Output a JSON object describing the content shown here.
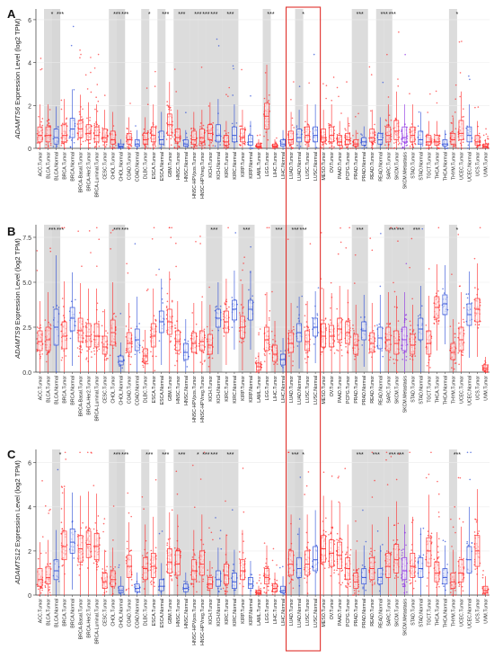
{
  "chart_data": [
    {
      "panel": "A",
      "type": "box",
      "ylabel": "ADAMTS6 Expression Level (log2 TPM)",
      "gene": "ADAMTS6",
      "ylim": [
        0,
        6.5
      ],
      "yticks": [
        0,
        2,
        4,
        6
      ],
      "categories": [
        "ACC.Tumor",
        "BLCA.Tumor",
        "BLCA.Normal",
        "BRCA.Tumor",
        "BRCA.Normal",
        "BRCA-Basal.Tumor",
        "BRCA-Her2.Tumor",
        "BRCA-Luminal.Tumor",
        "CESC.Tumor",
        "CHOL.Tumor",
        "CHOL.Normal",
        "COAD.Tumor",
        "COAD.Normal",
        "DLBC.Tumor",
        "ESCA.Tumor",
        "ESCA.Normal",
        "GBM.Tumor",
        "HNSC.Tumor",
        "HNSC.Normal",
        "HNSC-HPVpos.Tumor",
        "HNSC-HPVneg.Tumor",
        "KICH.Tumor",
        "KICH.Normal",
        "KIRC.Tumor",
        "KIRC.Normal",
        "KIRP.Tumor",
        "KIRP.Normal",
        "LAML.Tumor",
        "LGG.Tumor",
        "LIHC.Tumor",
        "LIHC.Normal",
        "LUAD.Tumor",
        "LUAD.Normal",
        "LUSC.Tumor",
        "LUSC.Normal",
        "MESO.Tumor",
        "OV.Tumor",
        "PAAD.Tumor",
        "PCPG.Tumor",
        "PRAD.Tumor",
        "PRAD.Normal",
        "READ.Tumor",
        "READ.Normal",
        "SARC.Tumor",
        "SKCM.Tumor",
        "SKCM.Metastasis",
        "STAD.Tumor",
        "STAD.Normal",
        "TGCT.Tumor",
        "THCA.Tumor",
        "THCA.Normal",
        "THYM.Tumor",
        "UCEC.Tumor",
        "UCEC.Normal",
        "UCS.Tumor",
        "UVM.Tumor"
      ],
      "medians": [
        0.6,
        0.6,
        0.5,
        0.6,
        0.9,
        0.9,
        0.7,
        0.6,
        0.5,
        0.4,
        0.1,
        0.4,
        0.2,
        0.4,
        0.6,
        0.4,
        1.1,
        0.5,
        0.2,
        0.4,
        0.5,
        0.7,
        0.6,
        0.3,
        0.6,
        0.5,
        0.3,
        0.1,
        1.5,
        0.1,
        0.2,
        0.4,
        0.5,
        0.6,
        0.6,
        0.5,
        0.6,
        0.3,
        0.4,
        0.2,
        0.3,
        0.5,
        0.4,
        0.6,
        0.8,
        0.5,
        0.6,
        0.4,
        0.3,
        0.3,
        0.2,
        0.4,
        0.7,
        0.6,
        0.3,
        0.1
      ],
      "q1": [
        0.3,
        0.3,
        0.2,
        0.3,
        0.5,
        0.5,
        0.4,
        0.3,
        0.3,
        0.2,
        0.05,
        0.2,
        0.1,
        0.2,
        0.3,
        0.2,
        0.6,
        0.3,
        0.1,
        0.2,
        0.3,
        0.4,
        0.3,
        0.15,
        0.3,
        0.3,
        0.15,
        0.05,
        0.9,
        0.05,
        0.1,
        0.2,
        0.3,
        0.3,
        0.3,
        0.3,
        0.3,
        0.15,
        0.2,
        0.1,
        0.15,
        0.3,
        0.2,
        0.3,
        0.4,
        0.3,
        0.3,
        0.2,
        0.15,
        0.15,
        0.1,
        0.2,
        0.4,
        0.3,
        0.15,
        0.05
      ],
      "q3": [
        1.0,
        1.0,
        0.9,
        1.1,
        1.4,
        1.3,
        1.1,
        1.0,
        0.9,
        0.8,
        0.2,
        0.7,
        0.4,
        0.7,
        1.0,
        0.8,
        1.6,
        0.9,
        0.4,
        0.8,
        0.9,
        1.1,
        1.1,
        0.6,
        1.0,
        0.9,
        0.6,
        0.2,
        2.1,
        0.2,
        0.4,
        0.8,
        0.9,
        1.0,
        1.0,
        0.9,
        1.0,
        0.6,
        0.7,
        0.4,
        0.5,
        0.9,
        0.7,
        1.0,
        1.3,
        1.0,
        1.0,
        0.8,
        0.6,
        0.6,
        0.4,
        0.7,
        1.3,
        1.0,
        0.6,
        0.2
      ],
      "significance": [
        "",
        "*",
        "***",
        "",
        "",
        "",
        "",
        "",
        "",
        "***",
        "***",
        "",
        "",
        "*",
        "",
        "***",
        "",
        "***",
        "",
        "***",
        "***",
        "***",
        "",
        "***",
        "",
        "",
        "",
        "",
        "***",
        "",
        "",
        "",
        "*",
        "",
        "",
        "",
        "",
        "",
        "",
        "***",
        "",
        "",
        "***",
        "***",
        "",
        "",
        "",
        "",
        "",
        "",
        "",
        "*",
        "",
        "",
        ""
      ]
    },
    {
      "panel": "B",
      "type": "box",
      "ylabel": "ADAMTS9 Expression Level (log2 TPM)",
      "gene": "ADAMTS9",
      "ylim": [
        0,
        8.2
      ],
      "yticks": [
        0.0,
        2.5,
        5.0,
        7.5
      ],
      "yticklabels": [
        "0.0",
        "2.5",
        "5.0",
        "7.5"
      ],
      "categories": [
        "ACC.Tumor",
        "BLCA.Tumor",
        "BLCA.Normal",
        "BRCA.Tumor",
        "BRCA.Normal",
        "BRCA-Basal.Tumor",
        "BRCA-Her2.Tumor",
        "BRCA-Luminal.Tumor",
        "CESC.Tumor",
        "CHOL.Tumor",
        "CHOL.Normal",
        "COAD.Tumor",
        "COAD.Normal",
        "DLBC.Tumor",
        "ESCA.Tumor",
        "ESCA.Normal",
        "GBM.Tumor",
        "HNSC.Tumor",
        "HNSC.Normal",
        "HNSC-HPVpos.Tumor",
        "HNSC-HPVneg.Tumor",
        "KICH.Tumor",
        "KICH.Normal",
        "KIRC.Tumor",
        "KIRC.Normal",
        "KIRP.Tumor",
        "KIRP.Normal",
        "LAML.Tumor",
        "LGG.Tumor",
        "LIHC.Tumor",
        "LIHC.Normal",
        "LUAD.Tumor",
        "LUAD.Normal",
        "LUSC.Tumor",
        "LUSC.Normal",
        "MESO.Tumor",
        "OV.Tumor",
        "PAAD.Tumor",
        "PCPG.Tumor",
        "PRAD.Tumor",
        "PRAD.Normal",
        "READ.Tumor",
        "READ.Normal",
        "SARC.Tumor",
        "SKCM.Tumor",
        "SKCM.Metastasis",
        "STAD.Tumor",
        "STAD.Normal",
        "TGCT.Tumor",
        "THCA.Tumor",
        "THCA.Normal",
        "THYM.Tumor",
        "UCEC.Tumor",
        "UCEC.Normal",
        "UCS.Tumor",
        "UVM.Tumor"
      ],
      "medians": [
        1.7,
        1.8,
        2.5,
        2.0,
        3.0,
        2.3,
        2.0,
        2.0,
        1.4,
        2.2,
        0.6,
        1.6,
        1.8,
        0.9,
        2.0,
        2.8,
        2.8,
        1.7,
        1.1,
        1.6,
        1.7,
        1.5,
        3.0,
        2.8,
        3.5,
        2.5,
        3.5,
        0.3,
        1.8,
        1.0,
        0.7,
        1.6,
        2.2,
        1.7,
        2.5,
        2.0,
        2.0,
        2.4,
        2.2,
        1.5,
        2.3,
        1.6,
        1.9,
        1.8,
        1.6,
        1.8,
        1.5,
        2.4,
        1.6,
        3.6,
        3.8,
        1.1,
        1.8,
        3.2,
        3.5,
        0.2
      ],
      "q1": [
        1.2,
        1.2,
        1.5,
        1.3,
        2.3,
        1.7,
        1.4,
        1.4,
        1.0,
        1.5,
        0.4,
        1.1,
        1.2,
        0.6,
        1.4,
        2.2,
        2.1,
        1.2,
        0.7,
        1.1,
        1.2,
        1.0,
        2.5,
        2.2,
        2.9,
        1.9,
        2.9,
        0.1,
        1.2,
        0.6,
        0.4,
        1.1,
        1.7,
        1.2,
        2.0,
        1.4,
        1.4,
        1.8,
        1.6,
        1.0,
        1.8,
        1.1,
        1.3,
        1.2,
        1.0,
        1.2,
        1.0,
        1.8,
        1.0,
        3.0,
        3.2,
        0.7,
        1.2,
        2.6,
        2.8,
        0.1
      ],
      "q3": [
        2.3,
        2.5,
        3.5,
        2.8,
        3.6,
        3.0,
        2.7,
        2.7,
        2.0,
        2.9,
        0.9,
        2.2,
        2.4,
        1.3,
        2.7,
        3.4,
        3.5,
        2.3,
        1.6,
        2.2,
        2.3,
        2.1,
        3.5,
        3.4,
        4.0,
        3.1,
        4.0,
        0.5,
        2.5,
        1.5,
        1.0,
        2.2,
        2.7,
        2.3,
        3.0,
        2.7,
        2.6,
        3.0,
        2.8,
        2.1,
        2.8,
        2.2,
        2.5,
        2.5,
        2.3,
        2.5,
        2.1,
        3.0,
        2.3,
        4.2,
        4.3,
        1.6,
        2.5,
        3.8,
        4.1,
        0.4
      ],
      "significance": [
        "",
        "***",
        "***",
        "",
        "",
        "",
        "",
        "",
        "",
        "***",
        "***",
        "",
        "",
        "",
        "",
        "",
        "",
        "",
        "",
        "",
        "",
        "***",
        "",
        "",
        "",
        "***",
        "",
        "",
        "",
        "***",
        "",
        "***",
        "***",
        "",
        "",
        "",
        "",
        "",
        "",
        "***",
        "",
        "",
        "",
        "***",
        "***",
        "",
        "***",
        "",
        "",
        "",
        "",
        "*",
        "",
        "",
        ""
      ]
    },
    {
      "panel": "C",
      "type": "box",
      "ylabel": "ADAMTS12 Expression Level (log2 TPM)",
      "gene": "ADAMTS12",
      "ylim": [
        0,
        6.6
      ],
      "yticks": [
        0,
        2,
        4,
        6
      ],
      "categories": [
        "ACC.Tumor",
        "BLCA.Tumor",
        "BLCA.Normal",
        "BRCA.Tumor",
        "BRCA.Normal",
        "BRCA-Basal.Tumor",
        "BRCA-Her2.Tumor",
        "BRCA-Luminal.Tumor",
        "CESC.Tumor",
        "CHOL.Tumor",
        "CHOL.Normal",
        "COAD.Tumor",
        "COAD.Normal",
        "DLBC.Tumor",
        "ESCA.Tumor",
        "ESCA.Normal",
        "GBM.Tumor",
        "HNSC.Tumor",
        "HNSC.Normal",
        "HNSC-HPVpos.Tumor",
        "HNSC-HPVneg.Tumor",
        "KICH.Tumor",
        "KICH.Normal",
        "KIRC.Tumor",
        "KIRC.Normal",
        "KIRP.Tumor",
        "KIRP.Normal",
        "LAML.Tumor",
        "LGG.Tumor",
        "LIHC.Tumor",
        "LIHC.Normal",
        "LUAD.Tumor",
        "LUAD.Normal",
        "LUSC.Tumor",
        "LUSC.Normal",
        "MESO.Tumor",
        "OV.Tumor",
        "PAAD.Tumor",
        "PCPG.Tumor",
        "PRAD.Tumor",
        "PRAD.Normal",
        "READ.Tumor",
        "READ.Normal",
        "SARC.Tumor",
        "SKCM.Tumor",
        "SKCM.Metastasis",
        "STAD.Tumor",
        "STAD.Normal",
        "TGCT.Tumor",
        "THCA.Tumor",
        "THCA.Normal",
        "THYM.Tumor",
        "UCEC.Tumor",
        "UCEC.Normal",
        "UCS.Tumor",
        "UVM.Tumor"
      ],
      "medians": [
        0.7,
        0.8,
        1.1,
        2.2,
        2.4,
        2.1,
        2.3,
        2.2,
        0.6,
        0.7,
        0.2,
        1.3,
        0.3,
        1.2,
        1.3,
        0.4,
        1.5,
        1.4,
        0.3,
        1.1,
        1.4,
        0.5,
        0.7,
        0.9,
        0.6,
        1.1,
        0.5,
        0.1,
        0.8,
        0.3,
        0.2,
        1.4,
        1.2,
        1.4,
        1.6,
        2.1,
        1.9,
        1.8,
        1.2,
        0.6,
        0.8,
        1.2,
        0.8,
        1.3,
        1.6,
        1.1,
        1.3,
        1.2,
        2.0,
        1.0,
        0.8,
        0.6,
        1.0,
        1.6,
        2.0,
        0.2
      ],
      "q1": [
        0.4,
        0.5,
        0.7,
        1.6,
        1.9,
        1.5,
        1.7,
        1.6,
        0.3,
        0.4,
        0.1,
        0.8,
        0.15,
        0.7,
        0.8,
        0.2,
        1.0,
        0.9,
        0.15,
        0.7,
        0.9,
        0.3,
        0.4,
        0.5,
        0.3,
        0.7,
        0.3,
        0.05,
        0.5,
        0.15,
        0.1,
        0.9,
        0.8,
        0.9,
        1.1,
        1.5,
        1.3,
        1.2,
        0.7,
        0.3,
        0.5,
        0.7,
        0.5,
        0.8,
        1.0,
        0.7,
        0.8,
        0.8,
        1.3,
        0.6,
        0.5,
        0.3,
        0.6,
        1.0,
        1.3,
        0.1
      ],
      "q3": [
        1.2,
        1.3,
        1.6,
        2.9,
        3.0,
        2.7,
        2.9,
        2.8,
        1.0,
        1.1,
        0.4,
        1.8,
        0.5,
        1.7,
        1.9,
        0.7,
        2.1,
        2.0,
        0.5,
        1.6,
        2.0,
        0.8,
        1.1,
        1.4,
        1.0,
        1.6,
        0.8,
        0.2,
        1.2,
        0.5,
        0.4,
        2.0,
        1.7,
        2.0,
        2.2,
        2.7,
        2.5,
        2.4,
        1.7,
        1.0,
        1.2,
        1.7,
        1.2,
        1.9,
        2.3,
        1.7,
        1.9,
        1.7,
        2.6,
        1.5,
        1.2,
        1.0,
        1.6,
        2.2,
        2.7,
        0.4
      ],
      "significance": [
        "",
        "",
        "*",
        "",
        "",
        "",
        "",
        "",
        "",
        "***",
        "***",
        "",
        "",
        "***",
        "",
        "***",
        "",
        "***",
        "",
        "*",
        "***",
        "***",
        "",
        "***",
        "",
        "",
        "",
        "",
        "",
        "",
        "",
        "***",
        "*",
        "",
        "",
        "",
        "",
        "",
        "",
        "***",
        "",
        "***",
        "",
        "***",
        "***",
        "",
        "",
        "",
        "",
        "",
        "",
        "***",
        "",
        "",
        ""
      ]
    }
  ],
  "panel_labels": [
    "A",
    "B",
    "C"
  ],
  "colors": {
    "tumor": "#ff2a2a",
    "normal": "#2a4bd7",
    "metastasis": "#8a2be2",
    "shade": "#d6d6d6",
    "highlight_box": "#e0302a"
  },
  "highlight": {
    "categories": [
      "LUAD.Tumor",
      "LUAD.Normal",
      "LUSC.Tumor",
      "LUSC.Normal"
    ]
  }
}
